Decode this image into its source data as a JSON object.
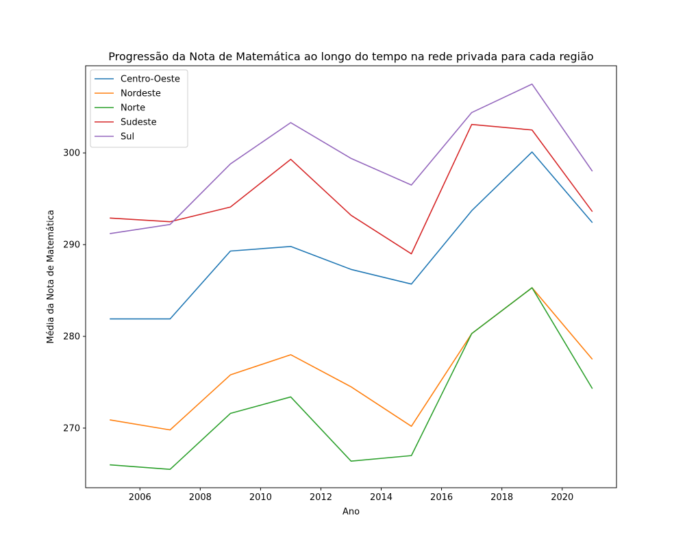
{
  "chart_data": {
    "type": "line",
    "title": "Progressão da Nota de Matemática ao longo do tempo na rede privada para cada região",
    "xlabel": "Ano",
    "ylabel": "Média da Nota de Matemática",
    "x": [
      2005,
      2007,
      2009,
      2011,
      2013,
      2015,
      2017,
      2019,
      2021
    ],
    "xlim": [
      2004.2,
      2021.8
    ],
    "ylim": [
      263.5,
      309.5
    ],
    "xticks": [
      2006,
      2008,
      2010,
      2012,
      2014,
      2016,
      2018,
      2020
    ],
    "yticks": [
      270,
      280,
      290,
      300
    ],
    "grid": false,
    "legend_position": "top-left",
    "series": [
      {
        "name": "Centro-Oeste",
        "color": "#1f77b4",
        "values": [
          281.9,
          281.9,
          289.3,
          289.8,
          287.3,
          285.7,
          293.7,
          300.1,
          292.4
        ]
      },
      {
        "name": "Nordeste",
        "color": "#ff7f0e",
        "values": [
          270.9,
          269.8,
          275.8,
          278.0,
          274.5,
          270.2,
          280.3,
          285.3,
          277.5
        ]
      },
      {
        "name": "Norte",
        "color": "#2ca02c",
        "values": [
          266.0,
          265.5,
          271.6,
          273.4,
          266.4,
          267.0,
          280.3,
          285.3,
          274.3
        ]
      },
      {
        "name": "Sudeste",
        "color": "#d62728",
        "values": [
          292.9,
          292.5,
          294.1,
          299.3,
          293.2,
          289.0,
          303.1,
          302.5,
          293.6
        ]
      },
      {
        "name": "Sul",
        "color": "#9467bd",
        "values": [
          291.2,
          292.2,
          298.8,
          303.3,
          299.4,
          296.5,
          304.4,
          307.5,
          298.0
        ]
      }
    ]
  }
}
